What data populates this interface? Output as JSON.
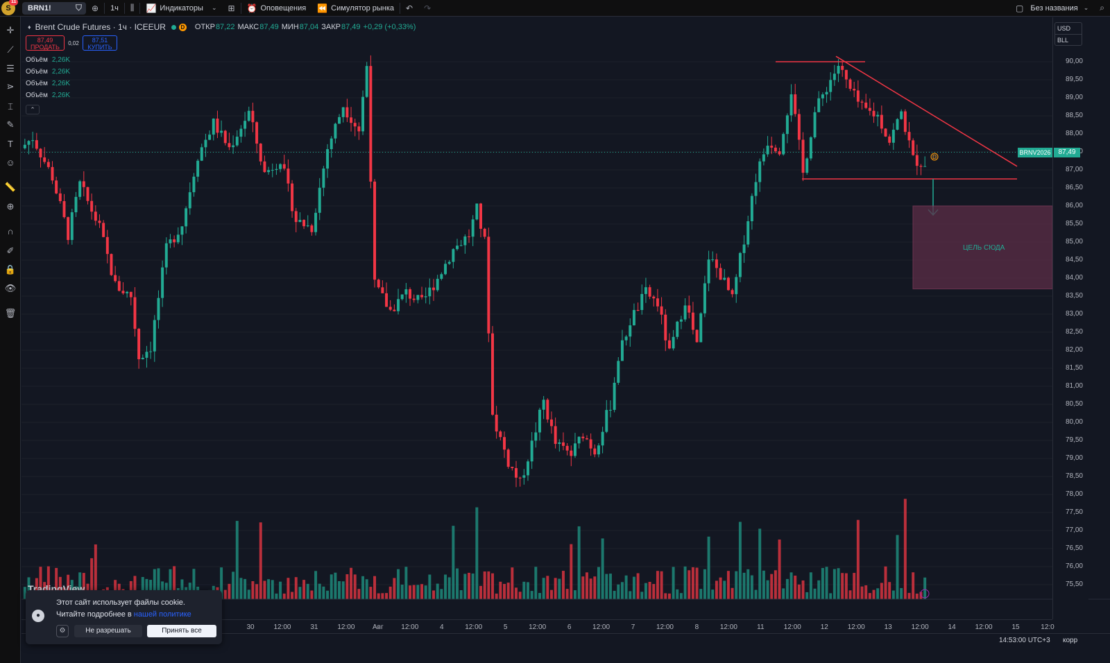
{
  "topbar": {
    "logo_letter": "S",
    "notif_count": "11",
    "symbol": "BRN1!",
    "interval": "1ч",
    "indicators": "Индикаторы",
    "alerts": "Оповещения",
    "replay": "Симулятор рынка",
    "layout_name": "Без названия"
  },
  "legend": {
    "title": "Brent Crude Futures · 1ч · ICEEUR",
    "badge": "D",
    "open_label": "ОТКР",
    "open": "87,22",
    "high_label": "МАКС",
    "high": "87,49",
    "low_label": "МИН",
    "low": "87,04",
    "close_label": "ЗАКР",
    "close": "87,49",
    "change": "+0,29 (+0,33%)"
  },
  "trade": {
    "sell_price": "87,49",
    "sell_label": "ПРОДАТЬ",
    "spread": "0,02",
    "buy_price": "87,51",
    "buy_label": "КУПИТЬ"
  },
  "volume_legends": [
    {
      "label": "Объём",
      "value": "2,26K"
    },
    {
      "label": "Объём",
      "value": "2,26K"
    },
    {
      "label": "Объём",
      "value": "2,26K"
    },
    {
      "label": "Объём",
      "value": "2,26K"
    }
  ],
  "price_axis": {
    "currency": "USD",
    "unit": "BLL",
    "labels": [
      "90,00",
      "89,50",
      "89,00",
      "88,50",
      "88,00",
      "87,50",
      "87,00",
      "86,50",
      "86,00",
      "85,50",
      "85,00",
      "84,50",
      "84,00",
      "83,50",
      "83,00",
      "82,50",
      "82,00",
      "81,50",
      "81,00",
      "80,50",
      "80,00",
      "79,50",
      "79,00",
      "78,50",
      "78,00",
      "77,50",
      "77,00",
      "76,50",
      "76,00",
      "75,50"
    ],
    "symbol_tag": "BRNV2026",
    "price_tag": "87,49"
  },
  "time_axis": {
    "labels": [
      "30",
      "12:00",
      "31",
      "12:00",
      "Авг",
      "12:00",
      "4",
      "12:00",
      "5",
      "12:00",
      "6",
      "12:00",
      "7",
      "12:00",
      "8",
      "12:00",
      "11",
      "12:00",
      "12",
      "12:00",
      "13",
      "12:00",
      "14",
      "12:00",
      "15",
      "12:0"
    ]
  },
  "status": {
    "clock": "14:53:00 UTC+3",
    "adj": "корр"
  },
  "annotation": {
    "target_label": "ЦЕЛЬ СЮДА",
    "alert_badge": "D"
  },
  "cookie": {
    "line1": "Этот сайт использует файлы cookie.",
    "line2": "Читайте подробнее в ",
    "link": "нашей политике",
    "deny": "Не разрешать",
    "accept": "Принять все"
  },
  "brand": "TradingView",
  "colors": {
    "up": "#22ab94",
    "down": "#f23645",
    "background": "#131722",
    "trendline": "#f23645",
    "target_zone": "#5c2d47"
  },
  "chart_data": {
    "type": "candlestick",
    "y_unit": "USD/BLL",
    "ylim": [
      75.25,
      91.0
    ],
    "anchors_price": [
      [
        0,
        87.6
      ],
      [
        3,
        87.9
      ],
      [
        8,
        86.8
      ],
      [
        12,
        85.2
      ],
      [
        15,
        86.6
      ],
      [
        20,
        85.4
      ],
      [
        24,
        83.8
      ],
      [
        28,
        83.5
      ],
      [
        30,
        81.8
      ],
      [
        33,
        82.1
      ],
      [
        37,
        84.8
      ],
      [
        41,
        85.5
      ],
      [
        45,
        87.4
      ],
      [
        49,
        88.3
      ],
      [
        53,
        87.6
      ],
      [
        58,
        88.6
      ],
      [
        62,
        86.9
      ],
      [
        66,
        87.3
      ],
      [
        70,
        85.6
      ],
      [
        74,
        85.4
      ],
      [
        78,
        87.6
      ],
      [
        82,
        88.8
      ],
      [
        86,
        88.1
      ],
      [
        88,
        89.9
      ],
      [
        90,
        83.8
      ],
      [
        94,
        83.1
      ],
      [
        98,
        83.6
      ],
      [
        102,
        83.3
      ],
      [
        106,
        84.0
      ],
      [
        110,
        84.8
      ],
      [
        114,
        85.2
      ],
      [
        116,
        85.9
      ],
      [
        118,
        85.0
      ],
      [
        120,
        80.2
      ],
      [
        124,
        78.9
      ],
      [
        127,
        78.3
      ],
      [
        130,
        79.4
      ],
      [
        133,
        80.6
      ],
      [
        136,
        79.4
      ],
      [
        140,
        79.1
      ],
      [
        143,
        79.7
      ],
      [
        146,
        79.2
      ],
      [
        150,
        80.5
      ],
      [
        152,
        81.8
      ],
      [
        155,
        82.8
      ],
      [
        159,
        83.6
      ],
      [
        162,
        83.3
      ],
      [
        165,
        81.9
      ],
      [
        169,
        83.4
      ],
      [
        172,
        82.1
      ],
      [
        175,
        84.6
      ],
      [
        178,
        84.1
      ],
      [
        181,
        83.4
      ],
      [
        184,
        85.1
      ],
      [
        187,
        86.8
      ],
      [
        190,
        87.8
      ],
      [
        193,
        87.6
      ],
      [
        196,
        89.2
      ],
      [
        199,
        86.9
      ],
      [
        202,
        88.6
      ],
      [
        205,
        89.3
      ],
      [
        208,
        89.9
      ],
      [
        211,
        89.2
      ],
      [
        214,
        88.7
      ],
      [
        218,
        88.5
      ],
      [
        221,
        87.8
      ],
      [
        224,
        88.6
      ],
      [
        227,
        87.3
      ],
      [
        229,
        87.2
      ]
    ],
    "pattern": {
      "type": "descending triangle",
      "resistance_start": 90.0,
      "resistance_end": 87.1,
      "support": 86.75,
      "target_zone": [
        83.7,
        86.0
      ]
    },
    "last_price": 87.49
  }
}
